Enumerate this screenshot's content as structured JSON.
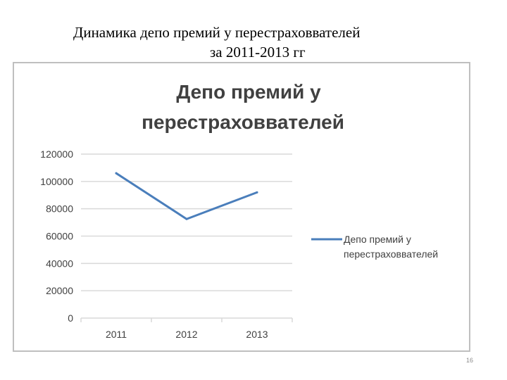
{
  "slide": {
    "title_line1": "Динамика депо премий у перестраховвателей",
    "title_line2": "за 2011-2013 гг",
    "page_number": "16"
  },
  "chart_data": {
    "type": "line",
    "title_line1": "Депо премий у",
    "title_line2": "перестраховвателей",
    "categories": [
      "2011",
      "2012",
      "2013"
    ],
    "series": [
      {
        "name_line1": "Депо премий у",
        "name_line2": "перестраховвателей",
        "values": [
          106000,
          72500,
          92000
        ],
        "color": "#4a7ebb"
      }
    ],
    "yticks": [
      "0",
      "20000",
      "40000",
      "60000",
      "80000",
      "100000",
      "120000"
    ],
    "ylim": [
      0,
      120000
    ],
    "grid": true,
    "legend": "right"
  }
}
